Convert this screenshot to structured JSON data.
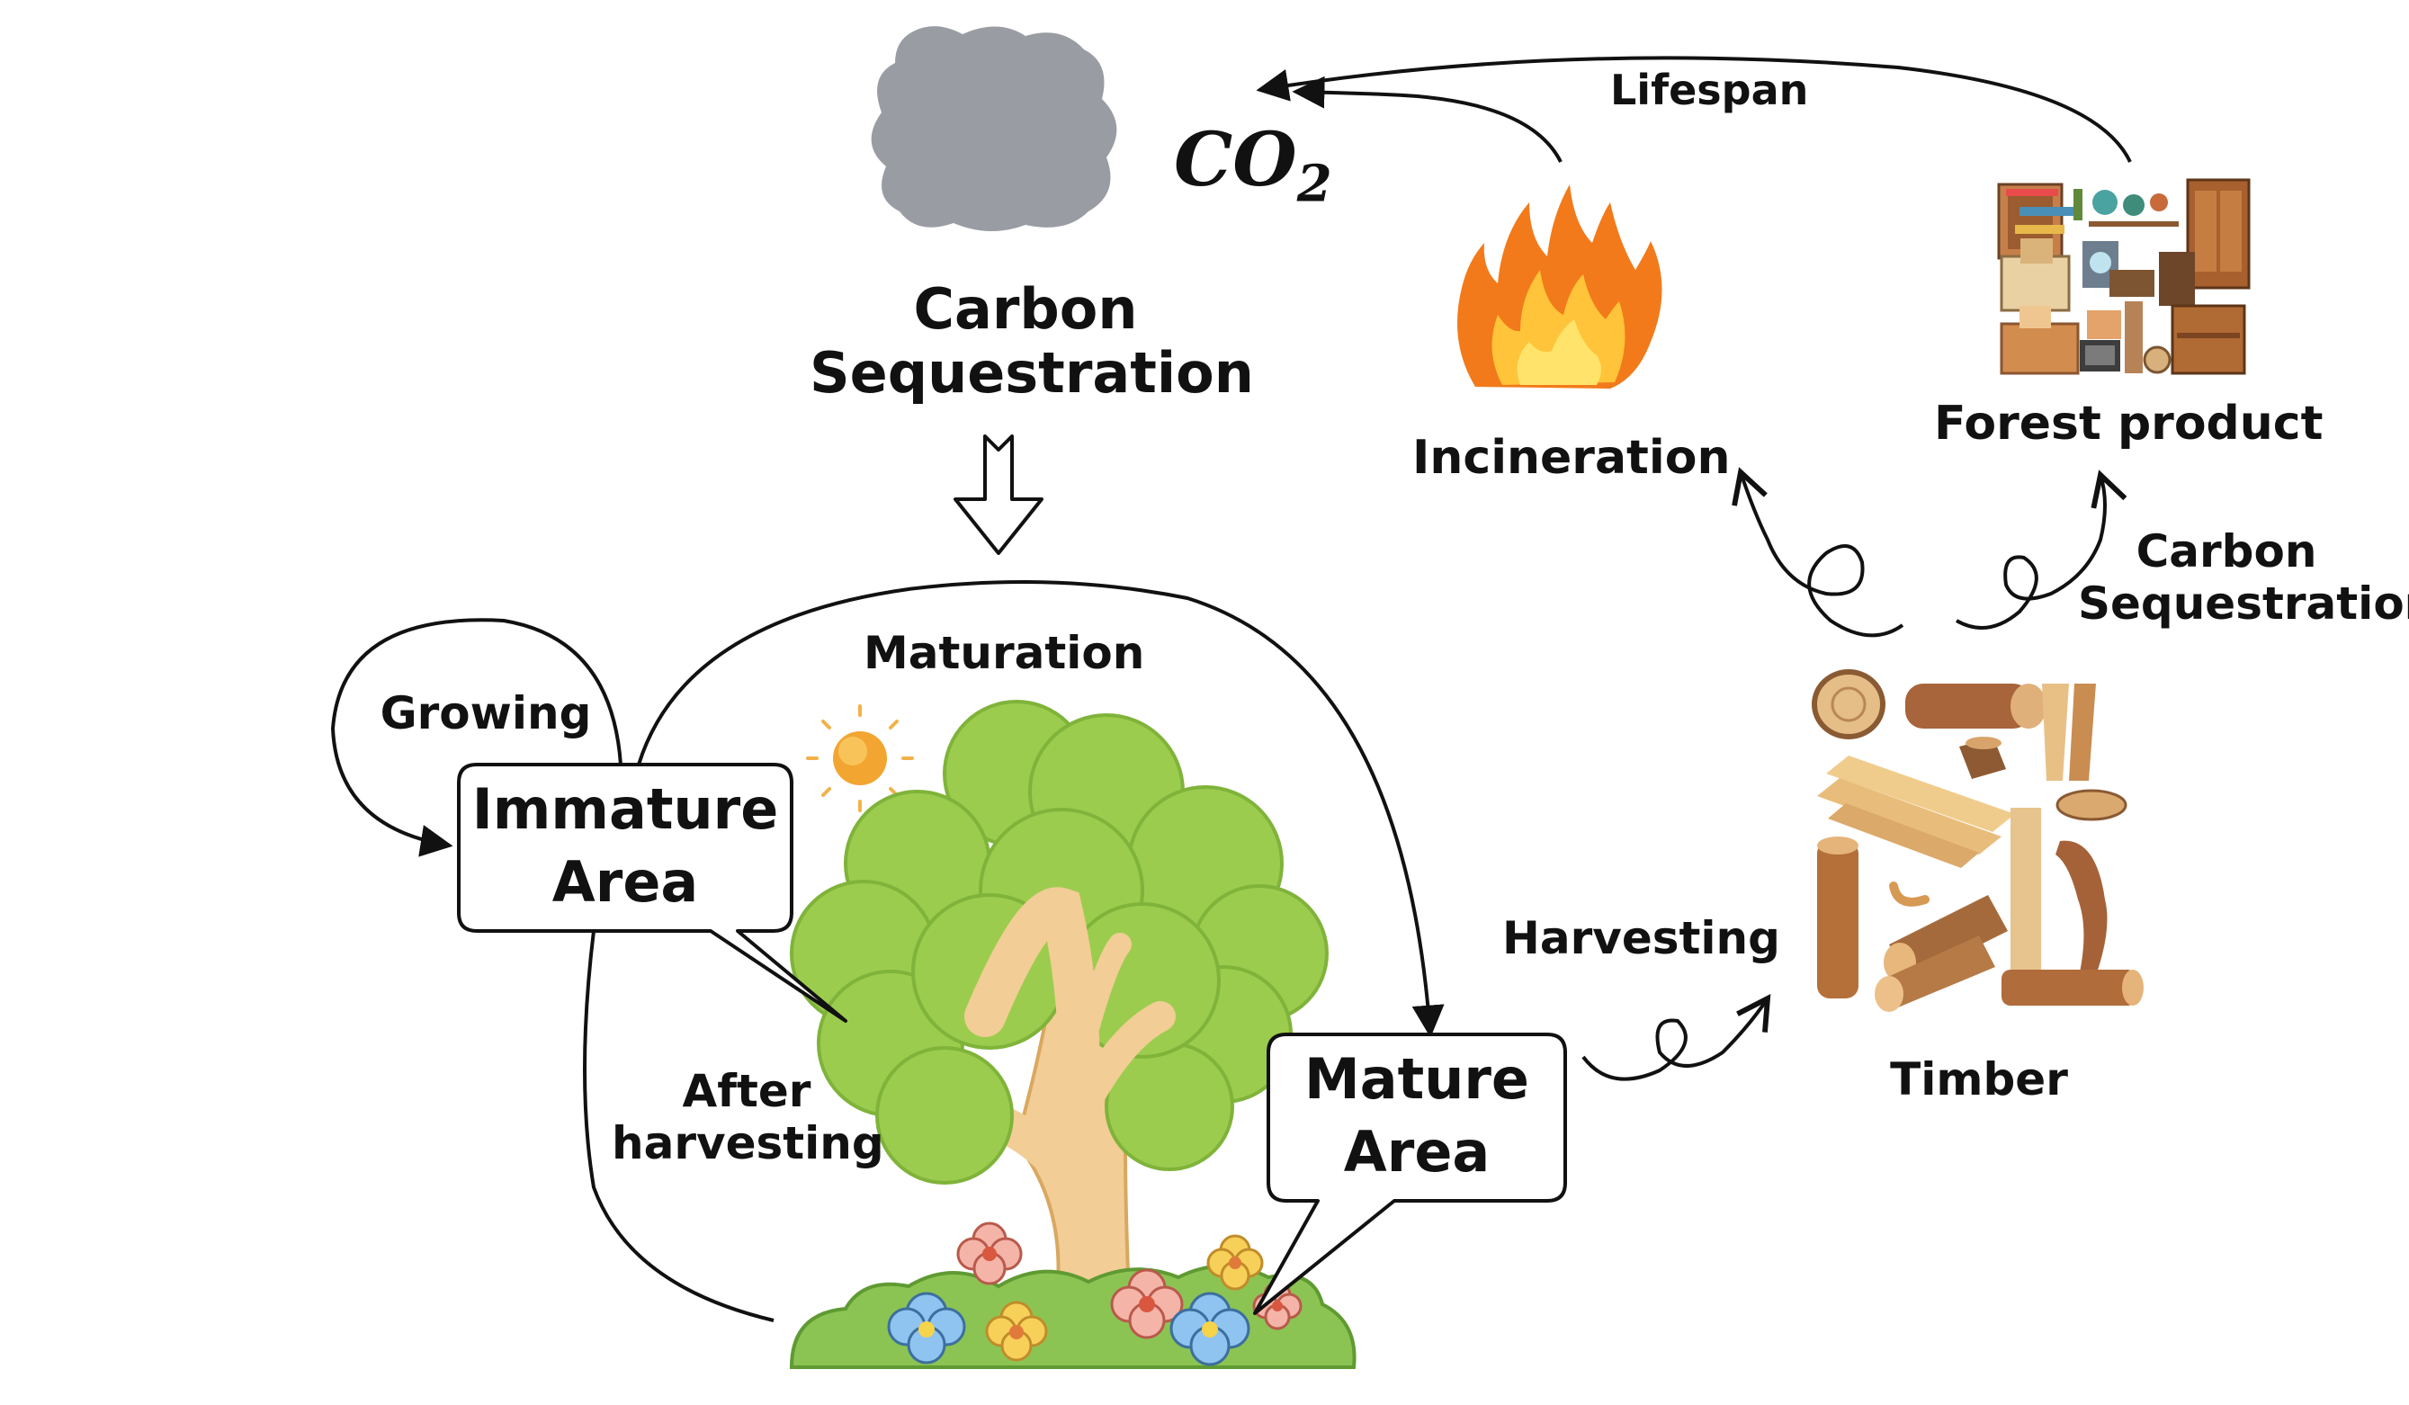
{
  "co2": {
    "base": "CO",
    "subscript": "2"
  },
  "labels": {
    "carbon_sequestration_top_line1": "Carbon",
    "carbon_sequestration_top_line2": "Sequestration",
    "lifespan": "Lifespan",
    "incineration": "Incineration",
    "forest_product": "Forest product",
    "carbon_sequestration_right_line1": "Carbon",
    "carbon_sequestration_right_line2": "Sequestration",
    "maturation": "Maturation",
    "growing": "Growing",
    "harvesting": "Harvesting",
    "timber": "Timber",
    "after_harvesting_line1": "After",
    "after_harvesting_line2": "harvesting"
  },
  "boxes": {
    "immature_line1": "Immature",
    "immature_line2": "Area",
    "mature_line1": "Mature",
    "mature_line2": "Area"
  },
  "colors": {
    "smoke": "#9a9ca3",
    "foliage": "#9ccc4e",
    "foliage_dark": "#7fb33a",
    "trunk": "#f2cd96",
    "flame_outer": "#f27a1a",
    "flame_inner": "#ffe36b",
    "sun": "#f2a531",
    "wood": "#b87a47",
    "wood_light": "#e6b877"
  }
}
